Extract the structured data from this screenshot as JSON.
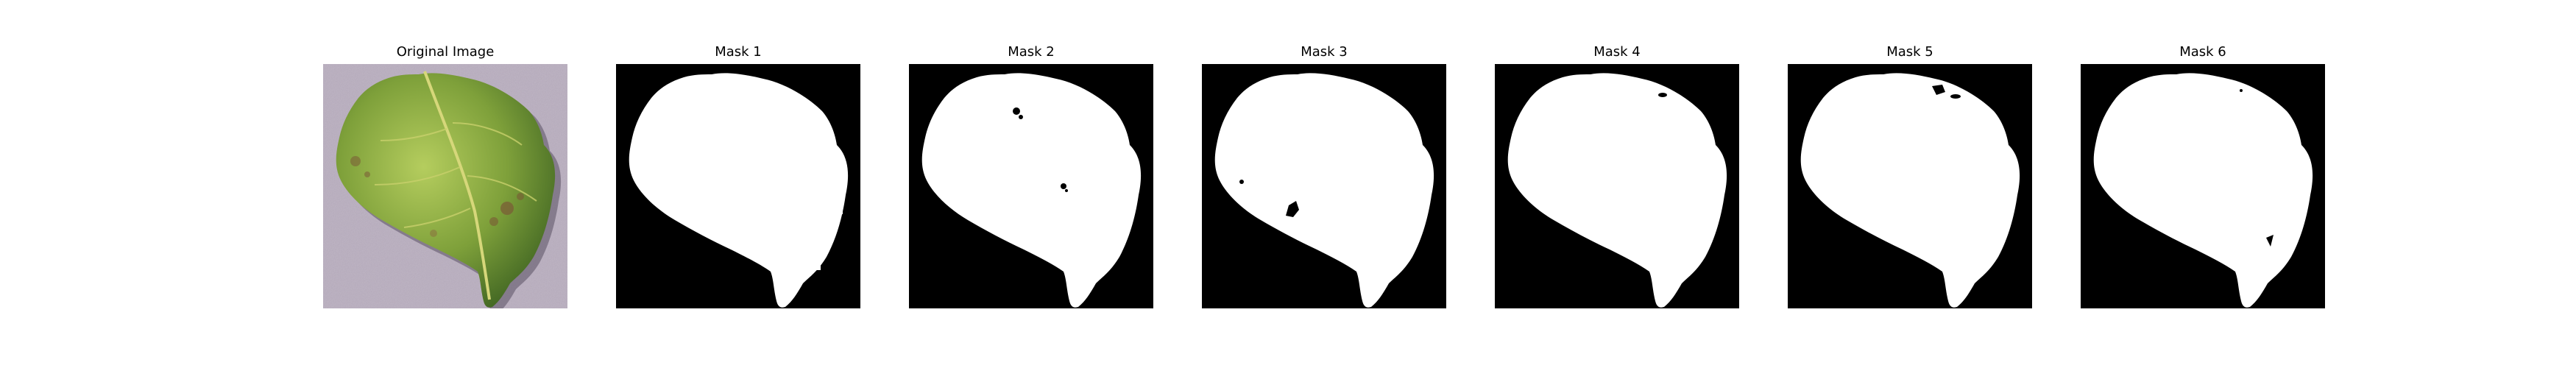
{
  "figure": {
    "panels": [
      {
        "title": "Original Image",
        "kind": "photo"
      },
      {
        "title": "Mask 1",
        "kind": "mask"
      },
      {
        "title": "Mask 2",
        "kind": "mask"
      },
      {
        "title": "Mask 3",
        "kind": "mask"
      },
      {
        "title": "Mask 4",
        "kind": "mask"
      },
      {
        "title": "Mask 5",
        "kind": "mask"
      },
      {
        "title": "Mask 6",
        "kind": "mask"
      }
    ],
    "colors": {
      "background": "#ffffff",
      "mask_background": "#000000",
      "mask_foreground": "#ffffff",
      "photo_surface": "#b3a8b9",
      "leaf_light": "#a9c257",
      "leaf_mid": "#6f9632",
      "leaf_dark": "#3f6422",
      "leaf_vein": "#d6d77a",
      "leaf_shadow": "#5a5062",
      "leaf_spot": "#7a5a36"
    }
  }
}
